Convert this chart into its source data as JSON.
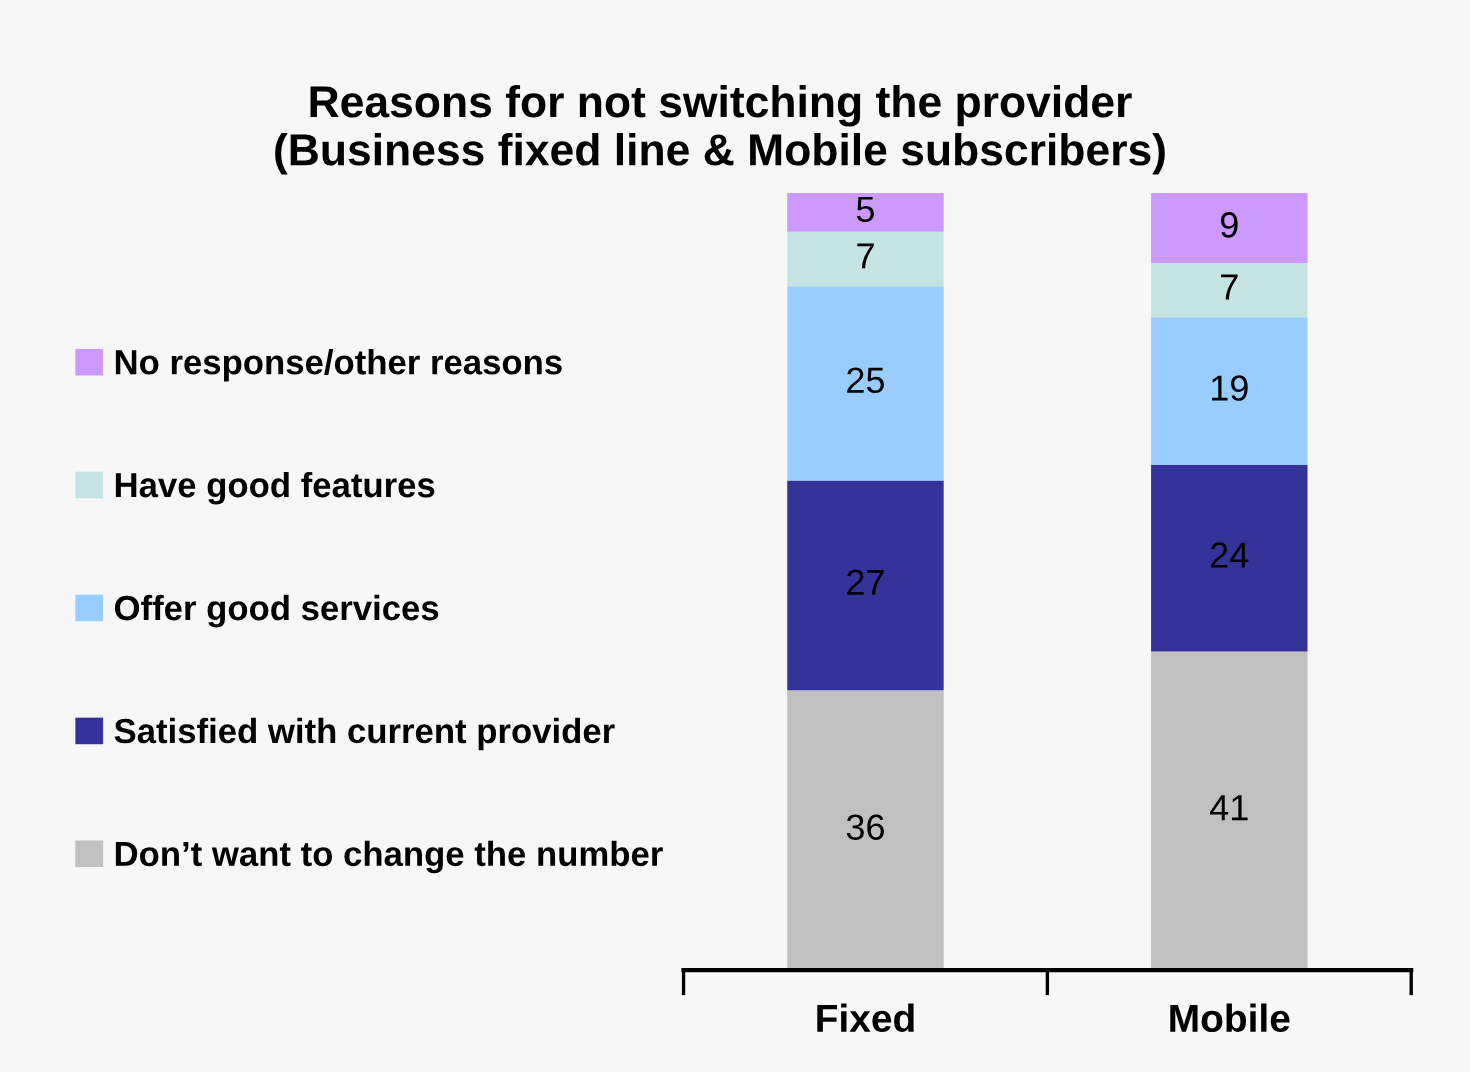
{
  "chart_data": {
    "type": "bar",
    "title": "Reasons for not switching the provider\n(Business fixed line & Mobile subscribers)",
    "categories": [
      "Fixed",
      "Mobile"
    ],
    "stacked": true,
    "data_labels": true,
    "legend": "left",
    "grid": false,
    "series": [
      {
        "name": "Don’t want to change the number",
        "color": "#c0c0c0",
        "values": [
          36,
          41
        ]
      },
      {
        "name": "Satisfied with current provider",
        "color": "#333399",
        "values": [
          27,
          24
        ]
      },
      {
        "name": "Offer good services",
        "color": "#99ccff",
        "values": [
          25,
          19
        ]
      },
      {
        "name": "Have good features",
        "color": "#c4e4e4",
        "values": [
          7,
          7
        ]
      },
      {
        "name": "No response/other reasons",
        "color": "#cc99ff",
        "values": [
          5,
          9
        ]
      }
    ]
  }
}
